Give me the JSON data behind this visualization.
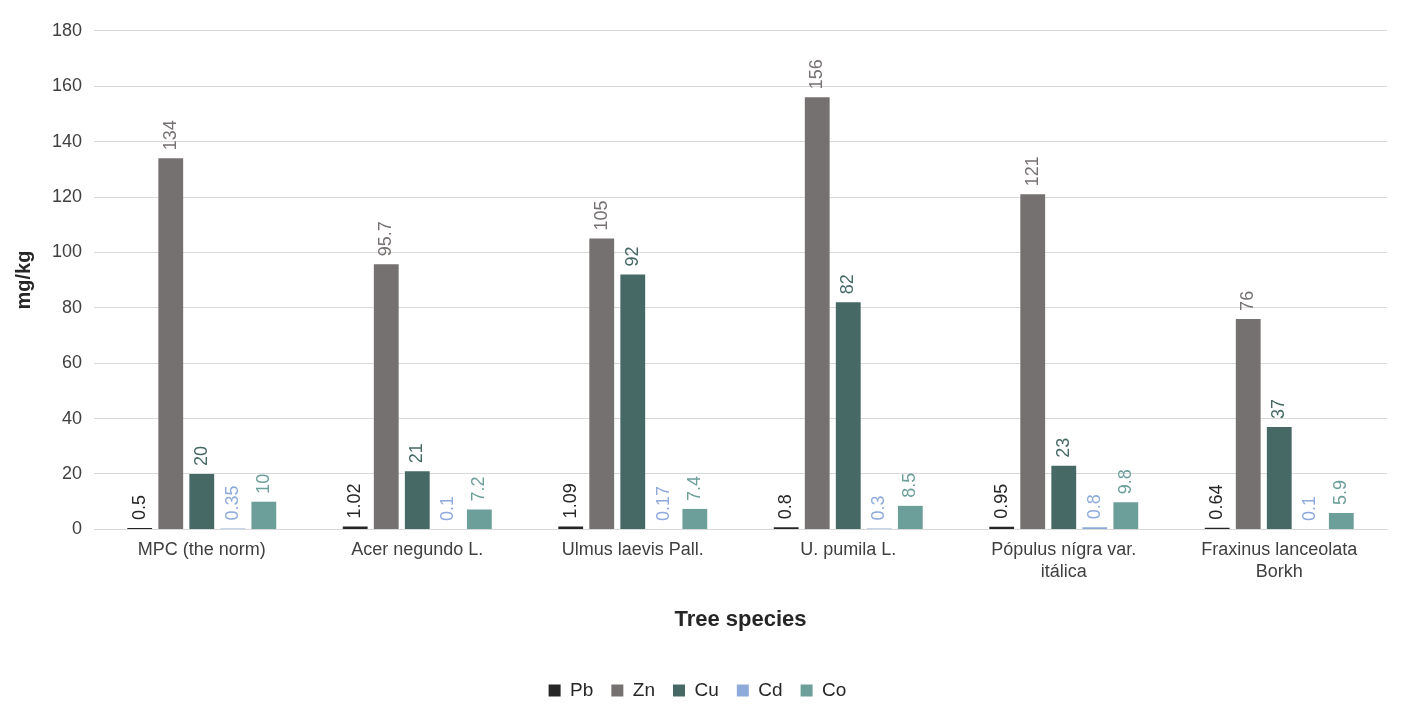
{
  "chart_data": {
    "type": "bar",
    "xlabel": "Tree species",
    "ylabel": "mg/kg",
    "categories": [
      "MPC (the norm)",
      "Acer negundo L.",
      "Ulmus laevis Pall.",
      "U. pumila L.",
      "Pópulus nígra var. itálica",
      "Fraxinus lanceolata Borkh"
    ],
    "series": [
      {
        "name": "Pb",
        "color": "#262626",
        "values": [
          0.5,
          1.02,
          1.09,
          0.8,
          0.95,
          0.64
        ]
      },
      {
        "name": "Zn",
        "color": "#767171",
        "values": [
          134,
          95.7,
          105,
          156,
          121,
          76
        ]
      },
      {
        "name": "Cu",
        "color": "#466965",
        "values": [
          20,
          21,
          92,
          82,
          23,
          37
        ]
      },
      {
        "name": "Cd",
        "color": "#8eaadb",
        "values": [
          0.35,
          0.1,
          0.17,
          0.3,
          0.8,
          0.1
        ]
      },
      {
        "name": "Co",
        "color": "#6c9f9a",
        "values": [
          10,
          7.2,
          7.4,
          8.5,
          9.8,
          5.9
        ]
      }
    ],
    "ylim": [
      0,
      180
    ],
    "yticks": [
      0,
      20,
      40,
      60,
      80,
      100,
      120,
      140,
      160,
      180
    ],
    "grid": "y",
    "legend": "bottom",
    "data_labels": true
  }
}
